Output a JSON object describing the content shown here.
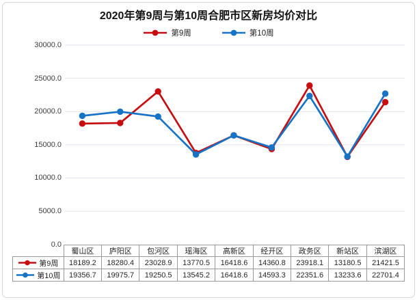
{
  "title": "2020年第9周与第10周合肥市区新房均价对比",
  "colors": {
    "week9_red": "#c60d10",
    "week10_blue": "#1673c5",
    "gridline": "#dfe5ec",
    "table_border": "#999999",
    "card_border": "#d6d6d6"
  },
  "legend": {
    "items": [
      {
        "label": "第9周",
        "marker": "line-with-circle-marker-icon",
        "color": "#c60d10"
      },
      {
        "label": "第10周",
        "marker": "line-with-circle-marker-icon",
        "color": "#1673c5"
      }
    ]
  },
  "chart_data": {
    "type": "line",
    "title": "2020年第9周与第10周合肥市区新房均价对比",
    "categories": [
      "蜀山区",
      "庐阳区",
      "包河区",
      "瑶海区",
      "高新区",
      "经开区",
      "政务区",
      "新站区",
      "滨湖区"
    ],
    "series": [
      {
        "name": "第9周",
        "color": "#c60d10",
        "values": [
          18189.2,
          18280.4,
          23028.9,
          13770.5,
          16418.6,
          14360.8,
          23918.1,
          13180.5,
          21421.5
        ]
      },
      {
        "name": "第10周",
        "color": "#1673c5",
        "values": [
          19356.7,
          19975.7,
          19250.5,
          13545.2,
          16418.6,
          14593.3,
          22351.6,
          13233.6,
          22701.4
        ]
      }
    ],
    "ylim": [
      0,
      30000
    ],
    "yticks": [
      {
        "value": 30000,
        "label": "30000.0"
      },
      {
        "value": 25000,
        "label": "25000.0"
      },
      {
        "value": 20000,
        "label": "20000.0"
      },
      {
        "value": 15000,
        "label": "15000.0"
      },
      {
        "value": 10000,
        "label": "10000.0"
      },
      {
        "value": 5000,
        "label": "5000.0"
      },
      {
        "value": 0,
        "label": "0.0"
      }
    ],
    "grid": true,
    "legend_position": "top",
    "marker": "circle",
    "xlabel": "",
    "ylabel": ""
  }
}
